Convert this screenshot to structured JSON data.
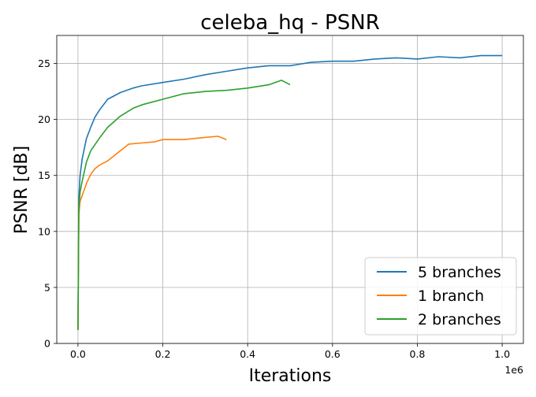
{
  "chart_data": {
    "type": "line",
    "title": "celeba_hq - PSNR",
    "xlabel": "Iterations",
    "ylabel": "PSNR [dB]",
    "x_offset_label": "1e6",
    "xlim": [
      -0.05,
      1.05
    ],
    "ylim": [
      0,
      27.5
    ],
    "x_ticks": [
      0.0,
      0.2,
      0.4,
      0.6,
      0.8,
      1.0
    ],
    "x_tick_labels": [
      "0.0",
      "0.2",
      "0.4",
      "0.6",
      "0.8",
      "1.0"
    ],
    "y_ticks": [
      0,
      5,
      10,
      15,
      20,
      25
    ],
    "y_tick_labels": [
      "0",
      "5",
      "10",
      "15",
      "20",
      "25"
    ],
    "grid": true,
    "legend_position": "lower-right",
    "series": [
      {
        "name": "5 branches",
        "color": "#1f77b4",
        "x": [
          0.0,
          0.002,
          0.005,
          0.01,
          0.02,
          0.03,
          0.04,
          0.05,
          0.07,
          0.1,
          0.13,
          0.15,
          0.2,
          0.25,
          0.3,
          0.35,
          0.4,
          0.45,
          0.5,
          0.55,
          0.6,
          0.65,
          0.7,
          0.75,
          0.8,
          0.85,
          0.9,
          0.95,
          1.0
        ],
        "y": [
          1.2,
          13.0,
          15.0,
          16.5,
          18.3,
          19.3,
          20.2,
          20.8,
          21.8,
          22.4,
          22.8,
          23.0,
          23.3,
          23.6,
          24.0,
          24.3,
          24.6,
          24.8,
          24.8,
          25.1,
          25.2,
          25.2,
          25.4,
          25.5,
          25.4,
          25.6,
          25.5,
          25.7,
          25.7
        ]
      },
      {
        "name": "1 branch",
        "color": "#ff7f0e",
        "x": [
          0.0,
          0.002,
          0.005,
          0.01,
          0.02,
          0.03,
          0.04,
          0.05,
          0.07,
          0.1,
          0.12,
          0.15,
          0.18,
          0.2,
          0.25,
          0.3,
          0.33,
          0.35
        ],
        "y": [
          1.2,
          11.5,
          12.7,
          13.2,
          14.3,
          15.1,
          15.6,
          15.9,
          16.3,
          17.2,
          17.8,
          17.9,
          18.0,
          18.2,
          18.2,
          18.4,
          18.5,
          18.2
        ]
      },
      {
        "name": "2 branches",
        "color": "#2ca02c",
        "x": [
          0.0,
          0.002,
          0.005,
          0.01,
          0.02,
          0.03,
          0.05,
          0.07,
          0.1,
          0.13,
          0.15,
          0.2,
          0.25,
          0.3,
          0.35,
          0.4,
          0.45,
          0.48,
          0.5
        ],
        "y": [
          1.2,
          12.0,
          13.5,
          14.5,
          16.2,
          17.2,
          18.3,
          19.3,
          20.3,
          21.0,
          21.3,
          21.8,
          22.3,
          22.5,
          22.6,
          22.8,
          23.1,
          23.5,
          23.1
        ]
      }
    ]
  }
}
